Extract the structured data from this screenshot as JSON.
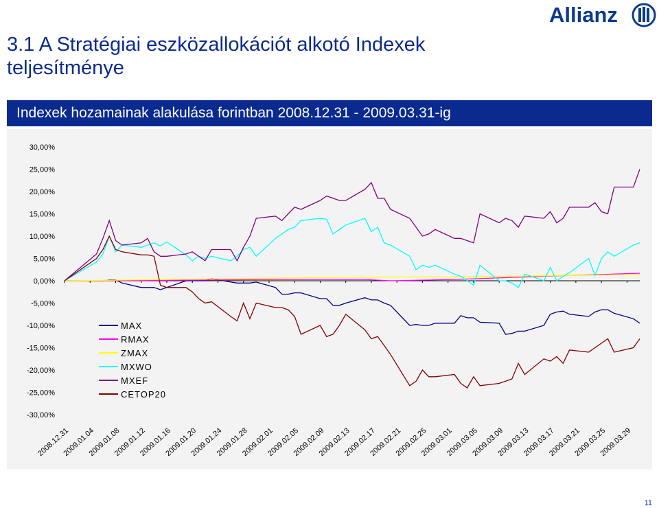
{
  "slide": {
    "title": "3.1 A Stratégiai eszközallokációt alkotó Indexek teljesítménye",
    "logo_text": "Allianz",
    "banner": "Indexek hozamainak alakulása forintban 2008.12.31 - 2009.03.31-ig",
    "page_number": "11"
  },
  "chart_data": {
    "type": "line",
    "title": "Indexek hozamainak alakulása forintban 2008.12.31 - 2009.03.31-ig",
    "xlabel": "",
    "ylabel": "",
    "ylim": [
      -30,
      30
    ],
    "y_ticks": [
      30,
      25,
      20,
      15,
      10,
      5,
      0,
      -5,
      -10,
      -15,
      -20,
      -25,
      -30
    ],
    "y_tick_labels": [
      "30,00%",
      "25,00%",
      "20,00%",
      "15,00%",
      "10,00%",
      "5,00%",
      "0,00%",
      "-5,00%",
      "-10,00%",
      "-15,00%",
      "-20,00%",
      "-25,00%",
      "-30,00%"
    ],
    "x_tick_labels": [
      "2008.12.31",
      "2009.01.04",
      "2009.01.08",
      "2009.01.12",
      "2009.01.16",
      "2009.01.20",
      "2009.01.24",
      "2009.01.28",
      "2009.02.01",
      "2009.02.05",
      "2009.02.09",
      "2009.02.13",
      "2009.02.17",
      "2009.02.21",
      "2009.02.25",
      "2009.03.01",
      "2009.03.05",
      "2009.03.09",
      "2009.03.13",
      "2009.03.17",
      "2009.03.21",
      "2009.03.25",
      "2009.03.29"
    ],
    "grid": false,
    "legend_position": "lower-left",
    "series": [
      {
        "name": "MAX",
        "color": "#000080",
        "points": [
          [
            "2008.12.31",
            0
          ],
          [
            "2009.01.05",
            0
          ],
          [
            "2009.01.06",
            0
          ],
          [
            "2009.01.07",
            0.2
          ],
          [
            "2009.01.08",
            0.2
          ],
          [
            "2009.01.09",
            -0.5
          ],
          [
            "2009.01.12",
            -1.5
          ],
          [
            "2009.01.13",
            -1.5
          ],
          [
            "2009.01.14",
            -1.5
          ],
          [
            "2009.01.15",
            -2
          ],
          [
            "2009.01.16",
            -1.5
          ],
          [
            "2009.01.19",
            0
          ],
          [
            "2009.01.20",
            0
          ],
          [
            "2009.01.21",
            0
          ],
          [
            "2009.01.22",
            0
          ],
          [
            "2009.01.23",
            0.5
          ],
          [
            "2009.01.26",
            -0.3
          ],
          [
            "2009.01.27",
            -0.5
          ],
          [
            "2009.01.28",
            -0.5
          ],
          [
            "2009.01.29",
            -0.5
          ],
          [
            "2009.01.30",
            -0.3
          ],
          [
            "2009.02.02",
            -1.5
          ],
          [
            "2009.02.03",
            -3
          ],
          [
            "2009.02.04",
            -3
          ],
          [
            "2009.02.05",
            -2.7
          ],
          [
            "2009.02.06",
            -2.7
          ],
          [
            "2009.02.09",
            -4
          ],
          [
            "2009.02.10",
            -4
          ],
          [
            "2009.02.11",
            -5.5
          ],
          [
            "2009.02.12",
            -5.5
          ],
          [
            "2009.02.13",
            -5
          ],
          [
            "2009.02.16",
            -3.8
          ],
          [
            "2009.02.17",
            -4.3
          ],
          [
            "2009.02.18",
            -4.3
          ],
          [
            "2009.02.19",
            -5
          ],
          [
            "2009.02.20",
            -5.5
          ],
          [
            "2009.02.23",
            -10
          ],
          [
            "2009.02.24",
            -9.8
          ],
          [
            "2009.02.25",
            -10
          ],
          [
            "2009.02.26",
            -10
          ],
          [
            "2009.02.27",
            -9.5
          ],
          [
            "2009.03.02",
            -9.5
          ],
          [
            "2009.03.03",
            -7.8
          ],
          [
            "2009.03.04",
            -8.3
          ],
          [
            "2009.03.05",
            -8.3
          ],
          [
            "2009.03.06",
            -9.3
          ],
          [
            "2009.03.09",
            -9.5
          ],
          [
            "2009.03.10",
            -12
          ],
          [
            "2009.03.11",
            -11.8
          ],
          [
            "2009.03.12",
            -11.3
          ],
          [
            "2009.03.13",
            -11.3
          ],
          [
            "2009.03.16",
            -10
          ],
          [
            "2009.03.17",
            -7.5
          ],
          [
            "2009.03.18",
            -7
          ],
          [
            "2009.03.19",
            -6.8
          ],
          [
            "2009.03.20",
            -7.5
          ],
          [
            "2009.03.23",
            -8
          ],
          [
            "2009.03.24",
            -7
          ],
          [
            "2009.03.25",
            -6.5
          ],
          [
            "2009.03.26",
            -6.5
          ],
          [
            "2009.03.27",
            -7.3
          ],
          [
            "2009.03.30",
            -8.5
          ],
          [
            "2009.03.31",
            -9.5
          ]
        ]
      },
      {
        "name": "RMAX",
        "color": "#ff00ff",
        "points": [
          [
            "2008.12.31",
            0
          ],
          [
            "2009.01.16",
            0.1
          ],
          [
            "2009.02.02",
            0.3
          ],
          [
            "2009.02.16",
            0.3
          ],
          [
            "2009.02.20",
            0
          ],
          [
            "2009.03.02",
            0.3
          ],
          [
            "2009.03.16",
            1
          ],
          [
            "2009.03.31",
            1.7
          ]
        ]
      },
      {
        "name": "ZMAX",
        "color": "#ffff00",
        "points": [
          [
            "2008.12.31",
            0
          ],
          [
            "2009.01.16",
            0.3
          ],
          [
            "2009.02.02",
            0.6
          ],
          [
            "2009.02.16",
            0.8
          ],
          [
            "2009.03.02",
            0.9
          ],
          [
            "2009.03.16",
            1.1
          ],
          [
            "2009.03.31",
            1.4
          ]
        ]
      },
      {
        "name": "MXWO",
        "color": "#00ffff",
        "points": [
          [
            "2008.12.31",
            0
          ],
          [
            "2009.01.05",
            4.2
          ],
          [
            "2009.01.06",
            6
          ],
          [
            "2009.01.07",
            10
          ],
          [
            "2009.01.08",
            6.5
          ],
          [
            "2009.01.09",
            8
          ],
          [
            "2009.01.12",
            7.5
          ],
          [
            "2009.01.13",
            8
          ],
          [
            "2009.01.14",
            8.5
          ],
          [
            "2009.01.15",
            7.8
          ],
          [
            "2009.01.16",
            8.7
          ],
          [
            "2009.01.19",
            5.8
          ],
          [
            "2009.01.20",
            4.5
          ],
          [
            "2009.01.21",
            5.5
          ],
          [
            "2009.01.22",
            5
          ],
          [
            "2009.01.23",
            5.5
          ],
          [
            "2009.01.26",
            4.5
          ],
          [
            "2009.01.27",
            5.5
          ],
          [
            "2009.01.28",
            7
          ],
          [
            "2009.01.29",
            7.5
          ],
          [
            "2009.01.30",
            5.5
          ],
          [
            "2009.02.02",
            9.5
          ],
          [
            "2009.02.03",
            10.5
          ],
          [
            "2009.02.04",
            11.5
          ],
          [
            "2009.02.05",
            12
          ],
          [
            "2009.02.06",
            13.5
          ],
          [
            "2009.02.09",
            14
          ],
          [
            "2009.02.10",
            13.8
          ],
          [
            "2009.02.11",
            10.5
          ],
          [
            "2009.02.12",
            11.5
          ],
          [
            "2009.02.13",
            12.5
          ],
          [
            "2009.02.16",
            14
          ],
          [
            "2009.02.17",
            11
          ],
          [
            "2009.02.18",
            12
          ],
          [
            "2009.02.19",
            8.5
          ],
          [
            "2009.02.20",
            8
          ],
          [
            "2009.02.23",
            5.5
          ],
          [
            "2009.02.24",
            2.5
          ],
          [
            "2009.02.25",
            3.5
          ],
          [
            "2009.02.26",
            3
          ],
          [
            "2009.02.27",
            3.5
          ],
          [
            "2009.03.02",
            1.5
          ],
          [
            "2009.03.03",
            1
          ],
          [
            "2009.03.04",
            0
          ],
          [
            "2009.03.05",
            -1
          ],
          [
            "2009.03.06",
            3.5
          ],
          [
            "2009.03.09",
            0
          ],
          [
            "2009.03.10",
            0
          ],
          [
            "2009.03.11",
            -0.5
          ],
          [
            "2009.03.12",
            -1.5
          ],
          [
            "2009.03.13",
            1.5
          ],
          [
            "2009.03.16",
            0
          ],
          [
            "2009.03.17",
            3
          ],
          [
            "2009.03.18",
            0
          ],
          [
            "2009.03.19",
            1
          ],
          [
            "2009.03.20",
            1.8
          ],
          [
            "2009.03.23",
            5
          ],
          [
            "2009.03.24",
            1.2
          ],
          [
            "2009.03.25",
            5
          ],
          [
            "2009.03.26",
            6.5
          ],
          [
            "2009.03.27",
            5.5
          ],
          [
            "2009.03.30",
            8
          ],
          [
            "2009.03.31",
            8.5
          ]
        ]
      },
      {
        "name": "MXEF",
        "color": "#800080",
        "points": [
          [
            "2008.12.31",
            0
          ],
          [
            "2009.01.05",
            6
          ],
          [
            "2009.01.06",
            9.5
          ],
          [
            "2009.01.07",
            13.5
          ],
          [
            "2009.01.08",
            9
          ],
          [
            "2009.01.09",
            8
          ],
          [
            "2009.01.12",
            8.5
          ],
          [
            "2009.01.13",
            9.5
          ],
          [
            "2009.01.14",
            6.5
          ],
          [
            "2009.01.15",
            5.5
          ],
          [
            "2009.01.16",
            5.5
          ],
          [
            "2009.01.19",
            6
          ],
          [
            "2009.01.20",
            6.5
          ],
          [
            "2009.01.21",
            5.5
          ],
          [
            "2009.01.22",
            4.5
          ],
          [
            "2009.01.23",
            7
          ],
          [
            "2009.01.26",
            7
          ],
          [
            "2009.01.27",
            4.5
          ],
          [
            "2009.01.28",
            7.5
          ],
          [
            "2009.01.29",
            10
          ],
          [
            "2009.01.30",
            14
          ],
          [
            "2009.02.02",
            14.5
          ],
          [
            "2009.02.03",
            13.5
          ],
          [
            "2009.02.04",
            15
          ],
          [
            "2009.02.05",
            16.5
          ],
          [
            "2009.02.06",
            16
          ],
          [
            "2009.02.09",
            18
          ],
          [
            "2009.02.10",
            19
          ],
          [
            "2009.02.11",
            18.5
          ],
          [
            "2009.02.12",
            18
          ],
          [
            "2009.02.13",
            18
          ],
          [
            "2009.02.16",
            20.5
          ],
          [
            "2009.02.17",
            22
          ],
          [
            "2009.02.18",
            18.5
          ],
          [
            "2009.02.19",
            18.5
          ],
          [
            "2009.02.20",
            16
          ],
          [
            "2009.02.23",
            14
          ],
          [
            "2009.02.24",
            12
          ],
          [
            "2009.02.25",
            10
          ],
          [
            "2009.02.26",
            10.5
          ],
          [
            "2009.02.27",
            11.5
          ],
          [
            "2009.03.02",
            9.5
          ],
          [
            "2009.03.03",
            9.5
          ],
          [
            "2009.03.04",
            9
          ],
          [
            "2009.03.05",
            8.5
          ],
          [
            "2009.03.06",
            15
          ],
          [
            "2009.03.09",
            13
          ],
          [
            "2009.03.10",
            14
          ],
          [
            "2009.03.11",
            13.5
          ],
          [
            "2009.03.12",
            12
          ],
          [
            "2009.03.13",
            14.5
          ],
          [
            "2009.03.16",
            14
          ],
          [
            "2009.03.17",
            15.5
          ],
          [
            "2009.03.18",
            13
          ],
          [
            "2009.03.19",
            14
          ],
          [
            "2009.03.20",
            16.5
          ],
          [
            "2009.03.23",
            16.5
          ],
          [
            "2009.03.24",
            17.5
          ],
          [
            "2009.03.25",
            15.5
          ],
          [
            "2009.03.26",
            15
          ],
          [
            "2009.03.27",
            21
          ],
          [
            "2009.03.30",
            21
          ],
          [
            "2009.03.31",
            25
          ]
        ]
      },
      {
        "name": "CETOP20",
        "color": "#800000",
        "points": [
          [
            "2008.12.31",
            0
          ],
          [
            "2009.01.05",
            5
          ],
          [
            "2009.01.06",
            7
          ],
          [
            "2009.01.07",
            10
          ],
          [
            "2009.01.08",
            7
          ],
          [
            "2009.01.09",
            6.5
          ],
          [
            "2009.01.12",
            5.8
          ],
          [
            "2009.01.13",
            5.8
          ],
          [
            "2009.01.14",
            5.5
          ],
          [
            "2009.01.15",
            -1
          ],
          [
            "2009.01.16",
            -1.5
          ],
          [
            "2009.01.19",
            -1.5
          ],
          [
            "2009.01.20",
            -2.5
          ],
          [
            "2009.01.21",
            -4
          ],
          [
            "2009.01.22",
            -5
          ],
          [
            "2009.01.23",
            -4.7
          ],
          [
            "2009.01.26",
            -8
          ],
          [
            "2009.01.27",
            -9
          ],
          [
            "2009.01.28",
            -5
          ],
          [
            "2009.01.29",
            -8.5
          ],
          [
            "2009.01.30",
            -5
          ],
          [
            "2009.02.02",
            -6
          ],
          [
            "2009.02.03",
            -6
          ],
          [
            "2009.02.04",
            -6.5
          ],
          [
            "2009.02.05",
            -8
          ],
          [
            "2009.02.06",
            -12
          ],
          [
            "2009.02.09",
            -10
          ],
          [
            "2009.02.10",
            -12.5
          ],
          [
            "2009.02.11",
            -12
          ],
          [
            "2009.02.12",
            -10
          ],
          [
            "2009.02.13",
            -7.5
          ],
          [
            "2009.02.16",
            -11
          ],
          [
            "2009.02.17",
            -13
          ],
          [
            "2009.02.18",
            -12.5
          ],
          [
            "2009.02.19",
            -14.5
          ],
          [
            "2009.02.20",
            -16.5
          ],
          [
            "2009.02.23",
            -23.5
          ],
          [
            "2009.02.24",
            -22.5
          ],
          [
            "2009.02.25",
            -20
          ],
          [
            "2009.02.26",
            -21.5
          ],
          [
            "2009.02.27",
            -21.5
          ],
          [
            "2009.03.02",
            -21
          ],
          [
            "2009.03.03",
            -23
          ],
          [
            "2009.03.04",
            -24
          ],
          [
            "2009.03.05",
            -21.5
          ],
          [
            "2009.03.06",
            -23.5
          ],
          [
            "2009.03.09",
            -23
          ],
          [
            "2009.03.10",
            -22.5
          ],
          [
            "2009.03.11",
            -22
          ],
          [
            "2009.03.12",
            -18.5
          ],
          [
            "2009.03.13",
            -21
          ],
          [
            "2009.03.16",
            -17.5
          ],
          [
            "2009.03.17",
            -18
          ],
          [
            "2009.03.18",
            -17
          ],
          [
            "2009.03.19",
            -18.5
          ],
          [
            "2009.03.20",
            -15.5
          ],
          [
            "2009.03.23",
            -16
          ],
          [
            "2009.03.24",
            -15
          ],
          [
            "2009.03.25",
            -14
          ],
          [
            "2009.03.26",
            -13
          ],
          [
            "2009.03.27",
            -16
          ],
          [
            "2009.03.30",
            -15
          ],
          [
            "2009.03.31",
            -13
          ]
        ]
      }
    ]
  }
}
